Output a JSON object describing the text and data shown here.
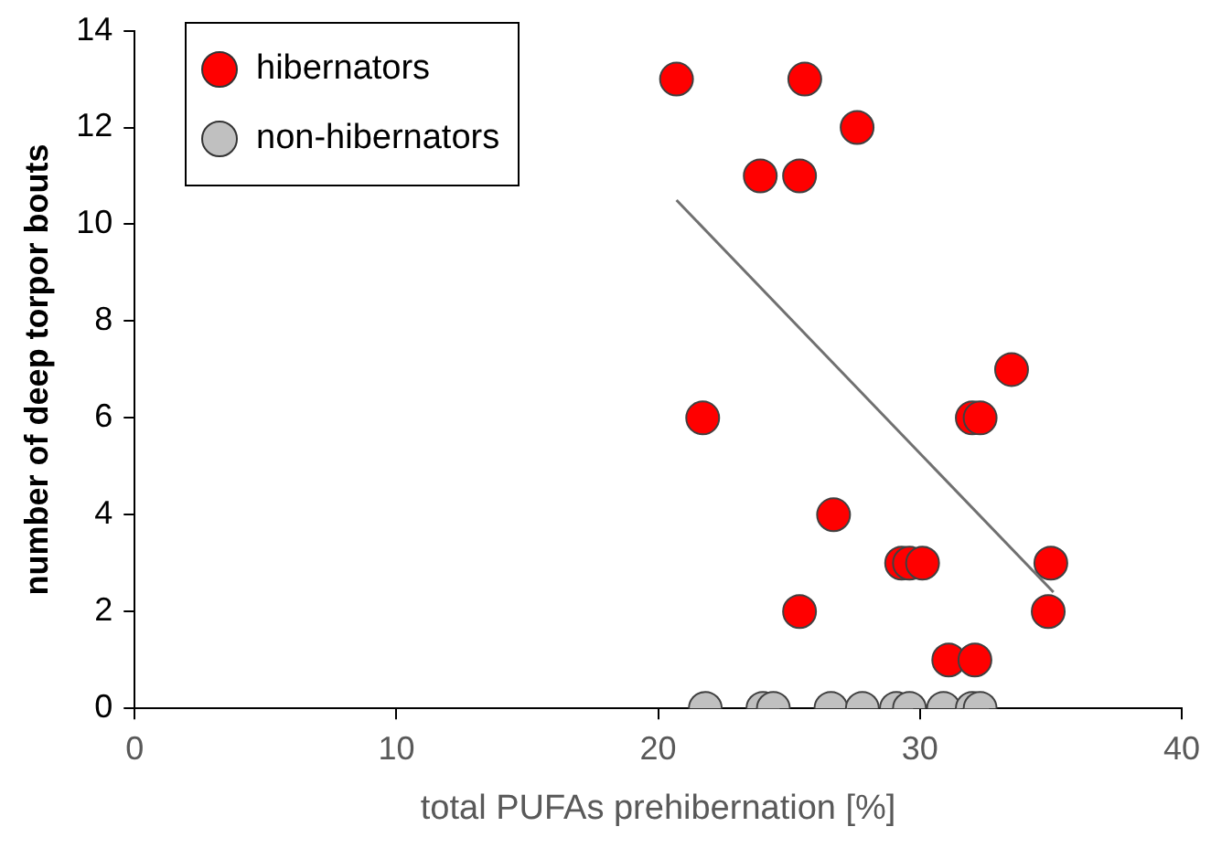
{
  "chart_data": {
    "type": "scatter",
    "xlabel": "total PUFAs prehibernation [%]",
    "ylabel": "number of deep torpor bouts",
    "xlim": [
      0,
      40
    ],
    "xticks": [
      0,
      10,
      20,
      30,
      40
    ],
    "ylim": [
      0,
      14
    ],
    "yticks": [
      0,
      2,
      4,
      6,
      8,
      10,
      12,
      14
    ],
    "grid": false,
    "legend": "top left",
    "marker": "circle",
    "series": [
      {
        "name": "hibernators",
        "color": "#ff0000",
        "x": [
          20.7,
          25.6,
          27.6,
          23.9,
          25.4,
          21.7,
          26.7,
          25.4,
          29.3,
          29.6,
          30.1,
          32.0,
          32.3,
          33.5,
          31.1,
          32.1,
          34.9,
          35.0
        ],
        "values": [
          13,
          13,
          12,
          11,
          11,
          6,
          4,
          2,
          3,
          3,
          3,
          6,
          6,
          7,
          1,
          1,
          2,
          3
        ]
      },
      {
        "name": "non-hibernators",
        "color": "#c0c0c0",
        "x": [
          21.8,
          24.0,
          24.4,
          26.6,
          27.8,
          29.1,
          29.6,
          30.9,
          32.0,
          32.3
        ],
        "values": [
          0,
          0,
          0,
          0,
          0,
          0,
          0,
          0,
          0,
          0
        ]
      },
      {
        "type": "line",
        "color": "#707070",
        "marker": "none",
        "x": [
          20.7,
          35.1
        ],
        "values": [
          10.5,
          2.4
        ]
      }
    ]
  }
}
